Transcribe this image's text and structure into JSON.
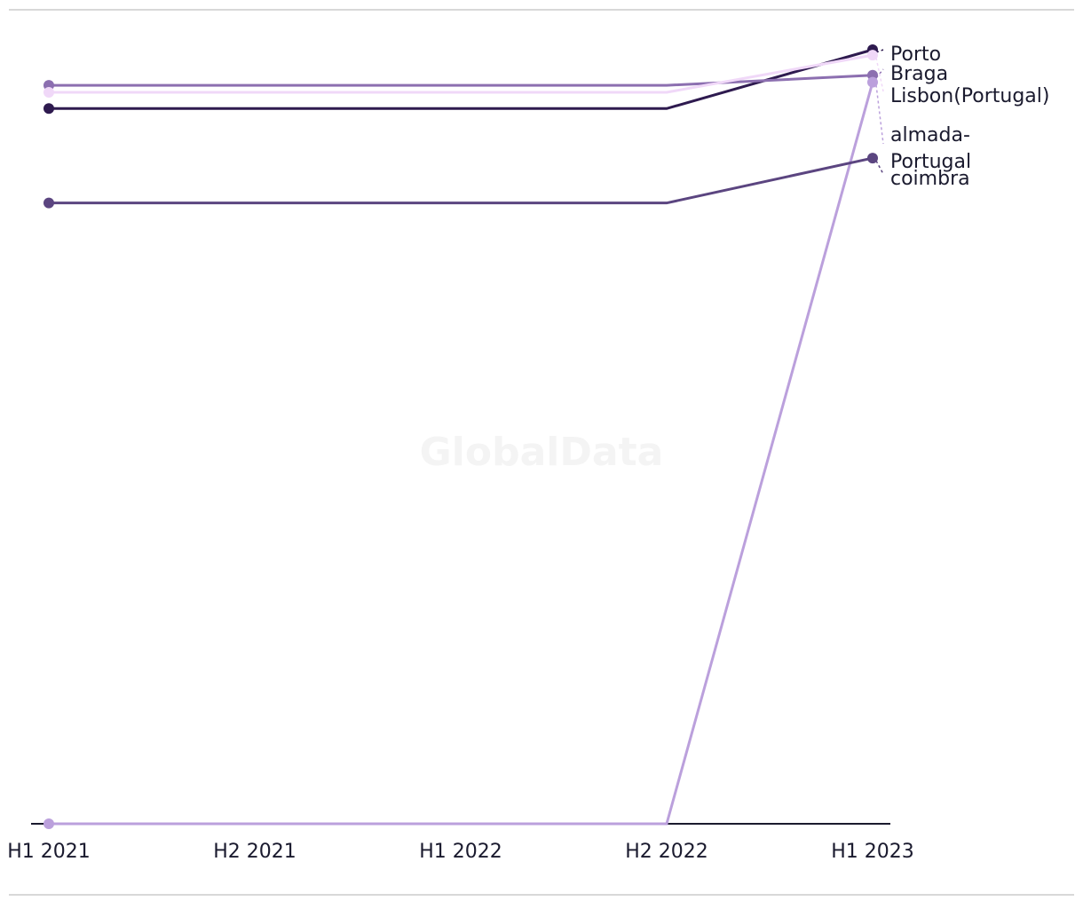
{
  "chart_data": {
    "type": "line",
    "watermark": "GlobalData",
    "categories": [
      "H1 2021",
      "H2 2021",
      "H1 2022",
      "H2 2022",
      "H1 2023"
    ],
    "series": [
      {
        "name": "Porto",
        "color": "#2e1a4f",
        "values": [
          92.4,
          92.4,
          92.4,
          92.4,
          100
        ]
      },
      {
        "name": "Braga",
        "color": "#8c6fb0",
        "values": [
          95.4,
          95.4,
          95.4,
          95.4,
          96.7
        ]
      },
      {
        "name": "Lisbon(Portugal)",
        "color": "#f0d8f8",
        "values": [
          94.5,
          94.5,
          94.5,
          94.5,
          99.3
        ]
      },
      {
        "name": "almada-Portugal",
        "color": "#bba0dc",
        "values": [
          0,
          0,
          0,
          0,
          95.8
        ]
      },
      {
        "name": "coimbra",
        "color": "#5b4580",
        "values": [
          80.2,
          80.2,
          80.2,
          80.2,
          86.0
        ]
      }
    ]
  }
}
